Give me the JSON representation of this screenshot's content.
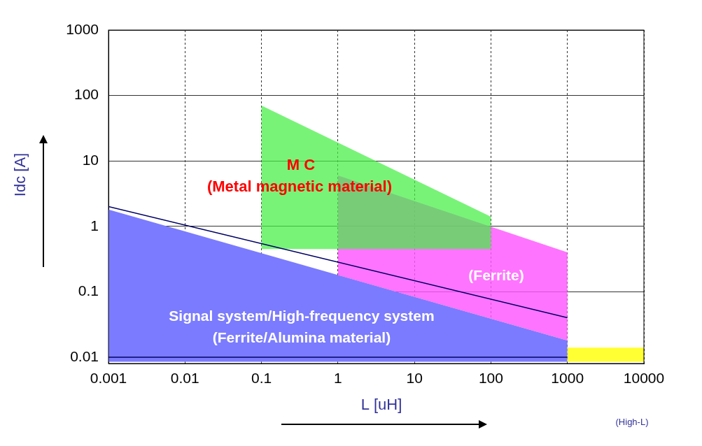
{
  "chart_data": {
    "type": "area",
    "xlabel": "L [uH]",
    "ylabel": "Idc [A]",
    "log": true,
    "grid": true,
    "xlim": [
      0.001,
      10000
    ],
    "xticks": [
      0.001,
      0.01,
      0.1,
      1,
      10,
      100,
      1000,
      10000
    ],
    "ylim": [
      0.008,
      1000
    ],
    "yticks": [
      0.01,
      0.1,
      1,
      10,
      100,
      1000
    ],
    "annotations": [
      {
        "text": "M C",
        "color": "#ff0000"
      },
      {
        "text": "(Metal magnetic material)",
        "color": "#ff0000"
      },
      {
        "text": "(Ferrite)",
        "color": "#ffffff"
      },
      {
        "text": "Signal system/High-frequency system",
        "color": "#ffffff"
      },
      {
        "text": "(Ferrite/Alumina material)",
        "color": "#ffffff"
      },
      {
        "text": "(High-L)",
        "color": "#333399"
      }
    ],
    "series": [
      {
        "type": "area",
        "color": "#7b7bff",
        "x": [
          0.001,
          0.001,
          1000,
          1000
        ],
        "values": [
          0.0085,
          1.8,
          0.018,
          0.0085
        ]
      },
      {
        "type": "area",
        "color": "#ff55ff",
        "x": [
          1,
          1,
          1000,
          1000
        ],
        "values": [
          0.18,
          6,
          0.4,
          0.018
        ]
      },
      {
        "type": "area",
        "color": "#44ee44",
        "x": [
          0.1,
          0.1,
          100,
          100
        ],
        "values": [
          0.45,
          70,
          1.4,
          0.45
        ]
      },
      {
        "type": "area",
        "color": "#ffff33",
        "x": [
          1000,
          1000,
          10000,
          10000
        ],
        "values": [
          0.0085,
          0.014,
          0.014,
          0.0085
        ]
      },
      {
        "type": "line",
        "color": "#000066",
        "x": [
          0.001,
          1000
        ],
        "values": [
          2,
          0.04
        ]
      },
      {
        "type": "line",
        "color": "#000066",
        "x": [
          0.001,
          1000
        ],
        "values": [
          0.01,
          0.01
        ]
      }
    ]
  }
}
